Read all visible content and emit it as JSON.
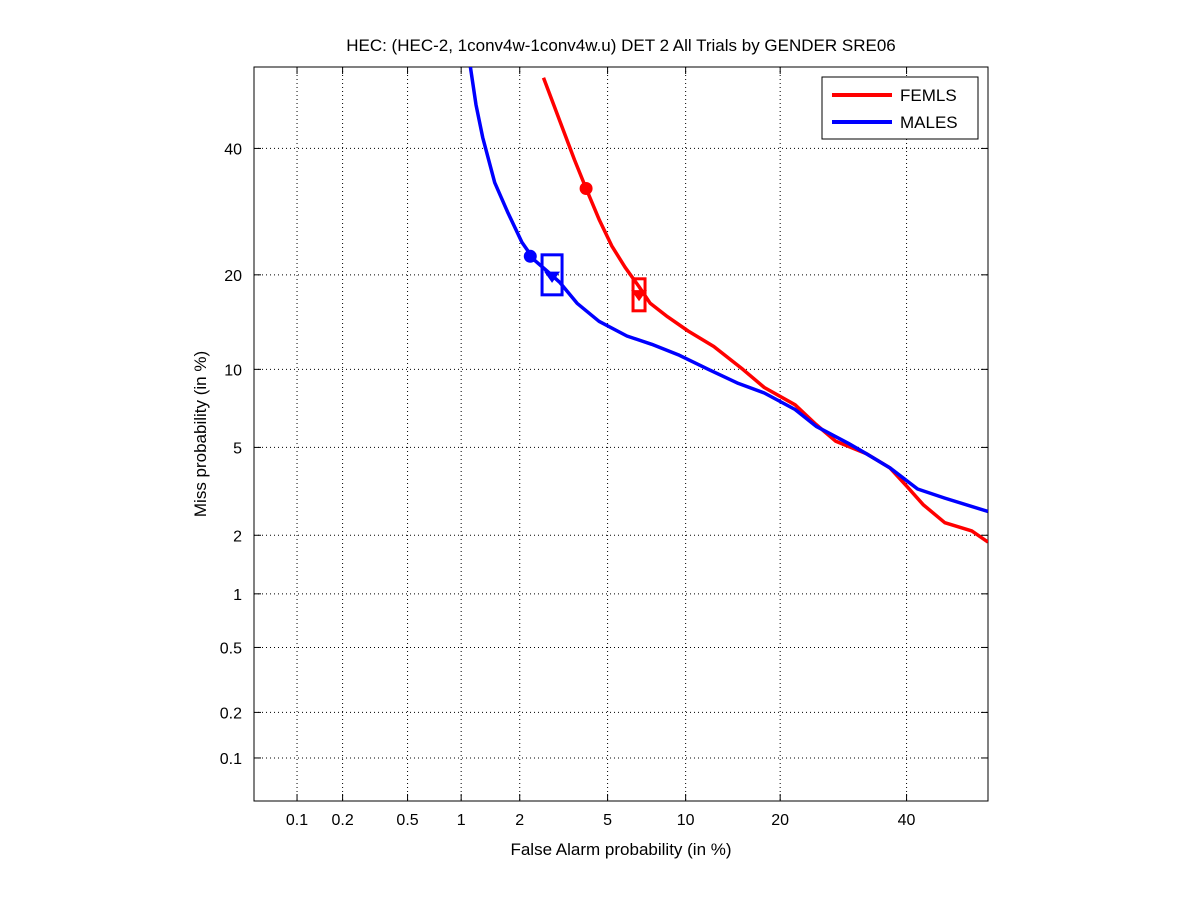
{
  "chart_data": {
    "type": "line",
    "title": "HEC: (HEC-2, 1conv4w-1conv4w.u) DET 2 All Trials by GENDER SRE06",
    "xlabel": "False Alarm probability (in %)",
    "ylabel": "Miss probability (in %)",
    "x_scale": "normal-deviate (probit)",
    "y_scale": "normal-deviate (probit)",
    "xlim": [
      0.05,
      55
    ],
    "ylim": [
      0.05,
      55
    ],
    "x_ticks": [
      "0.1",
      "0.2",
      "0.5",
      "1",
      "2",
      "5",
      "10",
      "20",
      "40"
    ],
    "y_ticks": [
      "0.1",
      "0.2",
      "0.5",
      "1",
      "2",
      "5",
      "10",
      "20",
      "40"
    ],
    "grid": true,
    "grid_style": "dotted",
    "legend_position": "top-right",
    "series": [
      {
        "name": "FEMLS",
        "color": "#ff0000",
        "points": [
          [
            2.6,
            53
          ],
          [
            2.9,
            48
          ],
          [
            3.3,
            42
          ],
          [
            3.6,
            38
          ],
          [
            4.05,
            33
          ],
          [
            4.6,
            28
          ],
          [
            5.2,
            24
          ],
          [
            5.9,
            21
          ],
          [
            6.7,
            18.5
          ],
          [
            7.4,
            16.5
          ],
          [
            8.6,
            15
          ],
          [
            10.2,
            13.5
          ],
          [
            12.5,
            12
          ],
          [
            15.5,
            10
          ],
          [
            18,
            8.6
          ],
          [
            22,
            7.4
          ],
          [
            25,
            6.2
          ],
          [
            28,
            5.3
          ],
          [
            33,
            4.7
          ],
          [
            37,
            4.1
          ],
          [
            40,
            3.4
          ],
          [
            43,
            2.8
          ],
          [
            47,
            2.3
          ],
          [
            52,
            2.1
          ],
          [
            55,
            1.85
          ]
        ],
        "markers": [
          {
            "shape": "circle",
            "x": 4.05,
            "y": 33
          },
          {
            "shape": "box",
            "x": 6.7,
            "y": 17.5
          },
          {
            "shape": "triangle",
            "x": 6.7,
            "y": 17.5
          }
        ]
      },
      {
        "name": "MALES",
        "color": "#0000ff",
        "points": [
          [
            1.12,
            55
          ],
          [
            1.2,
            48
          ],
          [
            1.3,
            42
          ],
          [
            1.5,
            34
          ],
          [
            1.75,
            29
          ],
          [
            2.05,
            24.5
          ],
          [
            2.35,
            22
          ],
          [
            2.7,
            20.5
          ],
          [
            3.1,
            19
          ],
          [
            3.7,
            16.5
          ],
          [
            4.6,
            14.5
          ],
          [
            6,
            13
          ],
          [
            7.5,
            12.2
          ],
          [
            9.5,
            11.2
          ],
          [
            12,
            10
          ],
          [
            15,
            8.9
          ],
          [
            18,
            8.2
          ],
          [
            22,
            7.1
          ],
          [
            25,
            6.1
          ],
          [
            30,
            5.2
          ],
          [
            33,
            4.7
          ],
          [
            37,
            4.1
          ],
          [
            42,
            3.3
          ],
          [
            47,
            3.0
          ],
          [
            55,
            2.6
          ]
        ],
        "markers": [
          {
            "shape": "circle",
            "x": 2.25,
            "y": 22.5
          },
          {
            "shape": "box",
            "x": 2.85,
            "y": 20
          },
          {
            "shape": "triangle",
            "x": 2.85,
            "y": 19.8
          }
        ]
      }
    ]
  }
}
